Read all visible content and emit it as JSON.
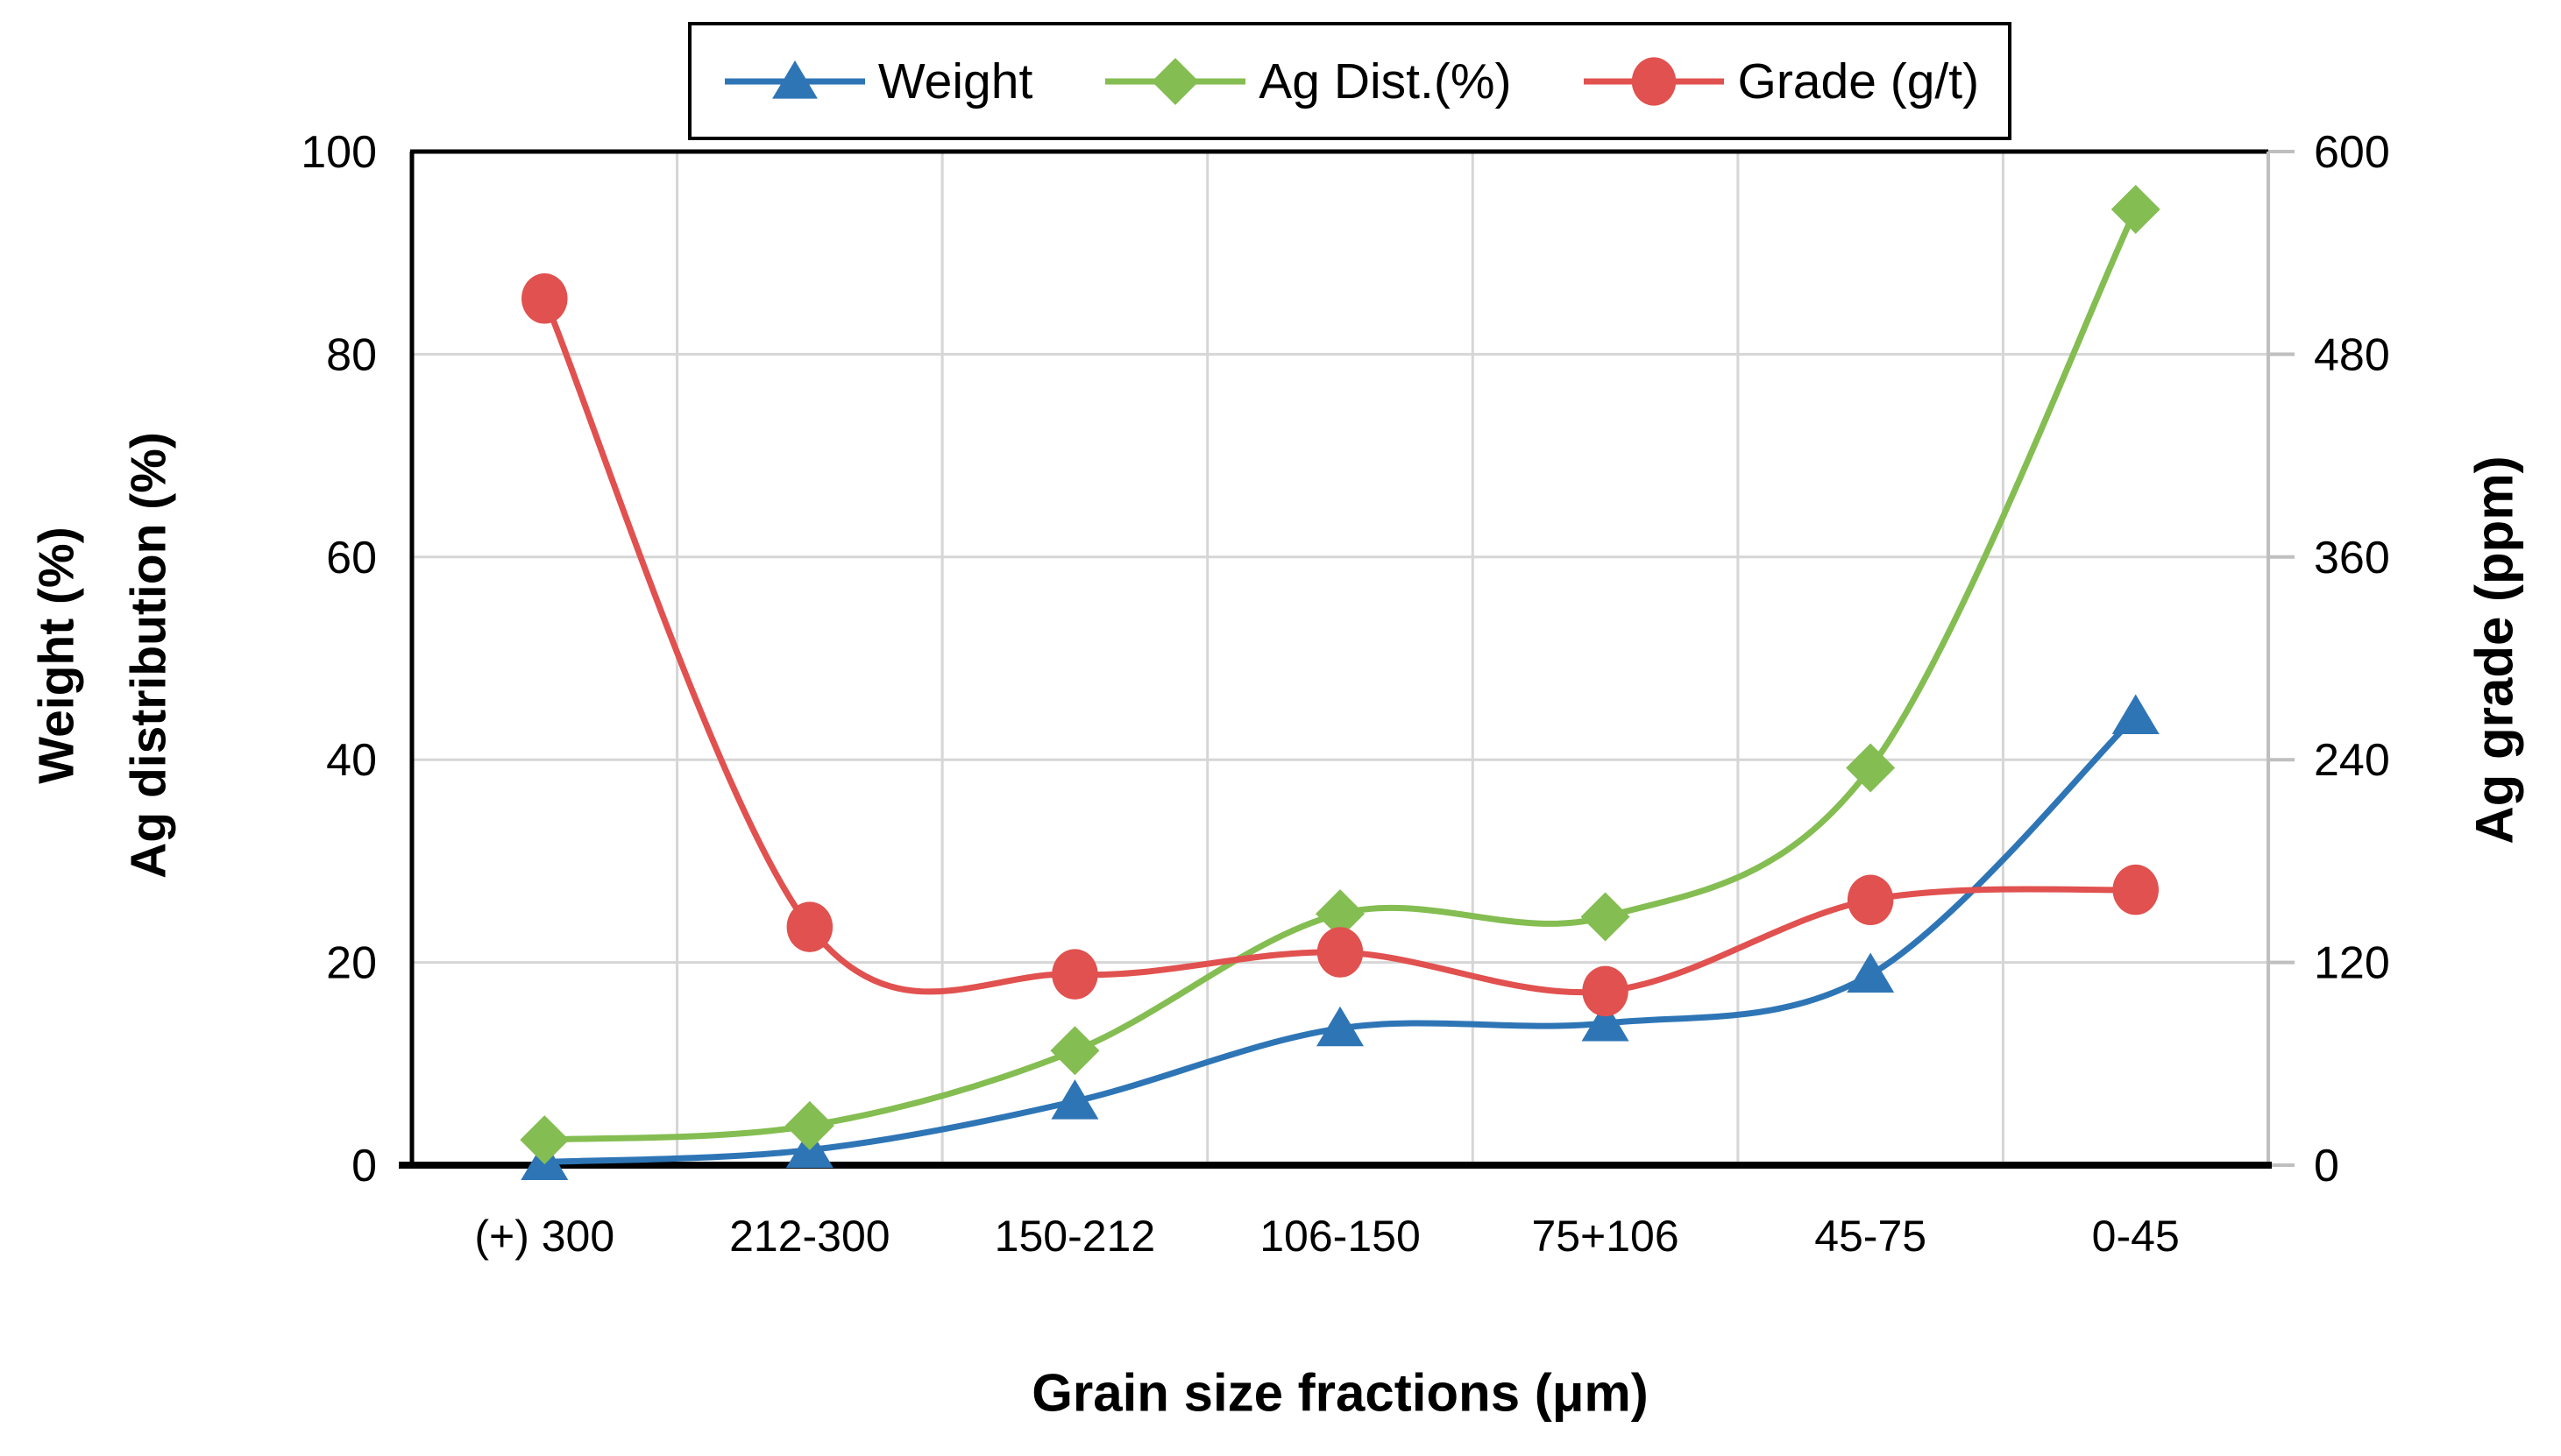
{
  "figure": {
    "x_axis_title": "Grain size fractions (μm)",
    "left_axis_title_line1": "Weight (%)",
    "left_axis_title_line2": "Ag distribution (%)",
    "right_axis_title": "Ag grade (ppm)"
  },
  "legend": {
    "items": [
      "Weight",
      "Ag Dist.(%)",
      "Grade (g/t)"
    ]
  },
  "colors": {
    "weight_blue": "#2E75B6",
    "ag_dist_green": "#84BD51",
    "grade_red": "#E0514F",
    "gridline": "#D6D6D6",
    "right_axis_gray": "#BFBFBF",
    "axis_black": "#000000"
  },
  "chart_data": {
    "type": "line",
    "title": "",
    "xlabel": "Grain size fractions (μm)",
    "ylabel_left": "Weight (%) / Ag distribution (%)",
    "ylabel_right": "Ag grade (ppm)",
    "categories": [
      "(+) 300",
      "212-300",
      "150-212",
      "106-150",
      "75+106",
      "45-75",
      "0-45"
    ],
    "series": [
      {
        "name": "Weight",
        "marker": "triangle",
        "color": "#2E75B6",
        "axis": "left",
        "values": [
          0.3,
          1.5,
          6.3,
          13.5,
          14.0,
          18.8,
          44.3
        ]
      },
      {
        "name": "Ag Dist.(%)",
        "marker": "diamond",
        "color": "#84BD51",
        "axis": "left",
        "values": [
          2.5,
          3.9,
          11.3,
          24.8,
          24.5,
          39.2,
          94.3
        ]
      },
      {
        "name": "Grade (g/t)",
        "marker": "circle",
        "color": "#E0514F",
        "axis": "right",
        "values": [
          513,
          141,
          113,
          126,
          103,
          157,
          163
        ]
      }
    ],
    "left_axis": {
      "min": 0,
      "max": 100,
      "ticks": [
        0,
        20,
        40,
        60,
        80,
        100
      ]
    },
    "right_axis": {
      "min": 0,
      "max": 600,
      "ticks": [
        0,
        120,
        240,
        360,
        480,
        600
      ]
    },
    "grid": true,
    "legend_position": "top",
    "smoothed_lines": true
  }
}
